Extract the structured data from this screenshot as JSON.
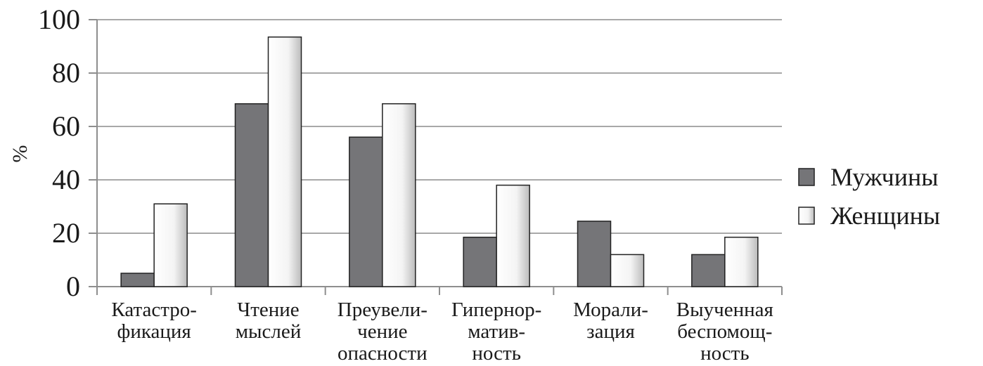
{
  "chart_data": {
    "type": "bar",
    "ylabel": "%",
    "ylim": [
      0,
      100
    ],
    "yticks": [
      0,
      20,
      40,
      60,
      80,
      100
    ],
    "grid": true,
    "legend_position": "right",
    "categories": [
      [
        "Катастро-",
        "фикация"
      ],
      [
        "Чтение",
        "мыслей"
      ],
      [
        "Преувели-",
        "чение",
        "опасности"
      ],
      [
        "Гипернор-",
        "матив-",
        "ность"
      ],
      [
        "Морали-",
        "зация"
      ],
      [
        "Выученная",
        "беспомощ-",
        "ность"
      ]
    ],
    "series": [
      {
        "name": "Мужчины",
        "color": "#757578",
        "values": [
          5,
          68.5,
          56,
          18.5,
          24.5,
          12
        ]
      },
      {
        "name": "Женщины",
        "color": "#ffffff",
        "values": [
          31,
          93.5,
          68.5,
          38,
          12,
          18.5
        ]
      }
    ]
  }
}
